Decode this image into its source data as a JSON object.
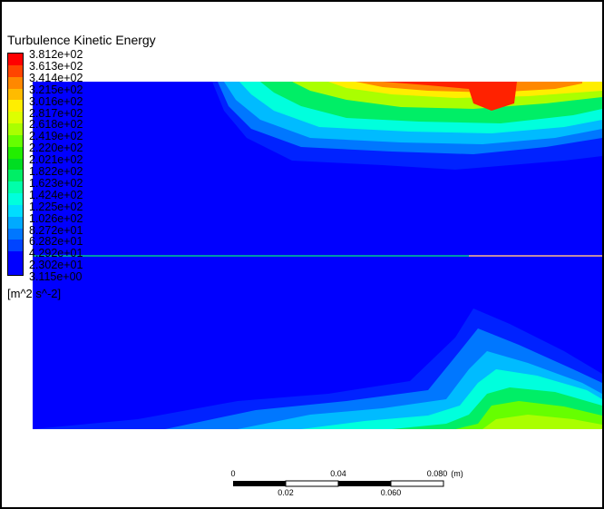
{
  "legend": {
    "title": "Turbulence Kinetic Energy",
    "units": "[m^2 s^-2]",
    "labels": [
      "3.812e+02",
      "3.613e+02",
      "3.414e+02",
      "3.215e+02",
      "3.016e+02",
      "2.817e+02",
      "2.618e+02",
      "2.419e+02",
      "2.220e+02",
      "2.021e+02",
      "1.822e+02",
      "1.623e+02",
      "1.424e+02",
      "1.225e+02",
      "1.026e+02",
      "8.272e+01",
      "6.282e+01",
      "4.292e+01",
      "2.302e+01",
      "3.115e+00"
    ],
    "colors": [
      "#ff0000",
      "#ff4400",
      "#ff8800",
      "#ffbb00",
      "#ffee00",
      "#ddff00",
      "#aaff00",
      "#66ff00",
      "#22ee00",
      "#00dd22",
      "#00ee66",
      "#00ffaa",
      "#00ffdd",
      "#00ddff",
      "#00aaff",
      "#0077ff",
      "#0044ff",
      "#0000ff",
      "#0000ff"
    ]
  },
  "scale": {
    "top_ticks": [
      "0",
      "0.04",
      "0.080",
      "(m)"
    ],
    "bottom_ticks": [
      "0.02",
      "0.060"
    ]
  }
}
